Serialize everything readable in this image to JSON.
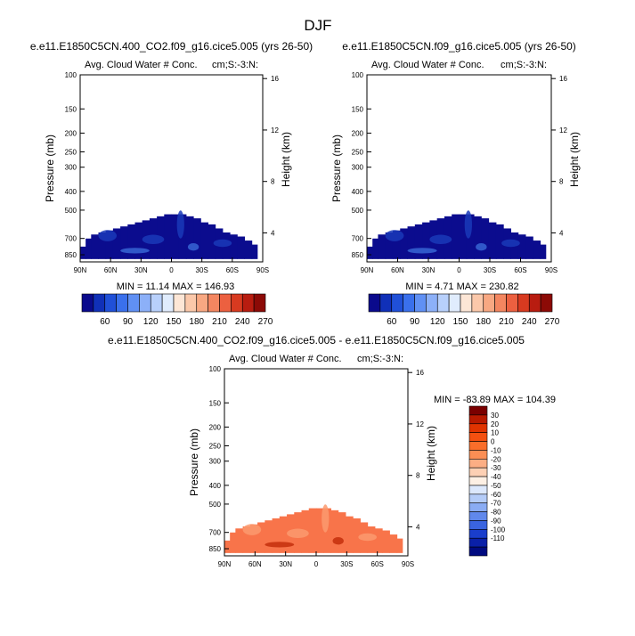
{
  "page": {
    "title": "DJF"
  },
  "chart_data": [
    {
      "id": "upper_left",
      "type": "heatmap",
      "title": "e.e11.E1850C5CN.400_CO2.f09_g16.cice5.005 (yrs 26-50)",
      "subtitle_left": "Avg. Cloud Water # Conc.",
      "subtitle_right": "cm;S:-3:N:",
      "ylabel": "Pressure (mb)",
      "ylabel_right": "Height (km)",
      "x_tick_labels": [
        "90N",
        "60N",
        "30N",
        "0",
        "30S",
        "60S",
        "90S"
      ],
      "y_tick_labels": [
        "100",
        "150",
        "200",
        "250",
        "300",
        "400",
        "500",
        "700",
        "850"
      ],
      "y_right_tick_labels": [
        "16",
        "12",
        "8",
        "4"
      ],
      "stats_text": "MIN =  11.14   MAX = 146.93",
      "colorbar_labels": [
        "60",
        "90",
        "120",
        "150",
        "180",
        "210",
        "240",
        "270"
      ]
    },
    {
      "id": "upper_right",
      "type": "heatmap",
      "title": "e.e11.E1850C5CN.f09_g16.cice5.005 (yrs 26-50)",
      "subtitle_left": "Avg. Cloud Water # Conc.",
      "subtitle_right": "cm;S:-3:N:",
      "ylabel": "Pressure (mb)",
      "ylabel_right": "Height (km)",
      "x_tick_labels": [
        "90N",
        "60N",
        "30N",
        "0",
        "30S",
        "60S",
        "90S"
      ],
      "y_tick_labels": [
        "100",
        "150",
        "200",
        "250",
        "300",
        "400",
        "500",
        "700",
        "850"
      ],
      "y_right_tick_labels": [
        "16",
        "12",
        "8",
        "4"
      ],
      "stats_text": "MIN =   4.71   MAX = 230.82",
      "colorbar_labels": [
        "60",
        "90",
        "120",
        "150",
        "180",
        "210",
        "240",
        "270"
      ]
    },
    {
      "id": "difference",
      "type": "heatmap",
      "title": "e.e11.E1850C5CN.400_CO2.f09_g16.cice5.005 - e.e11.E1850C5CN.f09_g16.cice5.005",
      "subtitle_left": "Avg. Cloud Water # Conc.",
      "subtitle_right": "cm;S:-3:N:",
      "ylabel": "Pressure (mb)",
      "ylabel_right": "Height (km)",
      "x_tick_labels": [
        "90N",
        "60N",
        "30N",
        "0",
        "30S",
        "60S",
        "90S"
      ],
      "y_tick_labels": [
        "100",
        "150",
        "200",
        "250",
        "300",
        "400",
        "500",
        "700",
        "850"
      ],
      "y_right_tick_labels": [
        "16",
        "12",
        "8",
        "4"
      ],
      "stats_text": "MIN = -83.89   MAX = 104.39",
      "colorbar_labels": [
        "30",
        "20",
        "10",
        "0",
        "-10",
        "-20",
        "-30",
        "-40",
        "-50",
        "-60",
        "-70",
        "-80",
        "-90",
        "-100",
        "-110"
      ]
    }
  ],
  "colors": {
    "abs_scale": [
      "#0a0a8c",
      "#1030b8",
      "#2050d8",
      "#3a70ec",
      "#6090f4",
      "#8cb0f8",
      "#b8d0fb",
      "#e0ecfd",
      "#fde6d6",
      "#fbc8aa",
      "#f8a882",
      "#f48660",
      "#ec6040",
      "#d83a20",
      "#b81c10",
      "#8c0a06"
    ],
    "diff_scale": [
      "#7a0000",
      "#b81a00",
      "#e03400",
      "#f45010",
      "#fa6e2a",
      "#fb8e54",
      "#fcae84",
      "#fdd0b4",
      "#fdf0e4",
      "#dce8fc",
      "#b4ccf8",
      "#8aacf4",
      "#6088ec",
      "#3a64e0",
      "#1a3ecc",
      "#0a20a8",
      "#000a80"
    ],
    "field_dark": "#0b0c8e",
    "field_mid": "#1a3ab8",
    "field_light": "#3a6ad8",
    "diff_field": "#f8744a",
    "diff_light": "#fb9a6e",
    "diff_dark": "#c02a08"
  }
}
